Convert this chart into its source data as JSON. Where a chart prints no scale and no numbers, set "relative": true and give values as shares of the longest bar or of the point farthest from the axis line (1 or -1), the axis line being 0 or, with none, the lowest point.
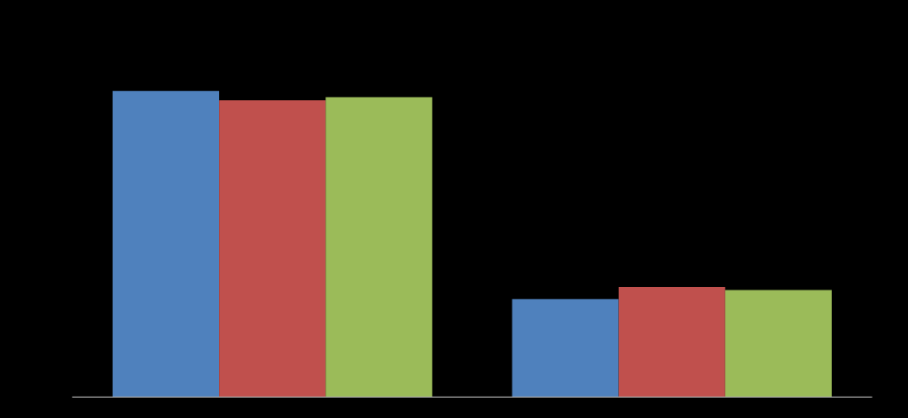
{
  "chart_data": {
    "type": "bar",
    "relative": true,
    "categories": [
      null,
      null
    ],
    "series": [
      {
        "color": "#4f81bd",
        "values": [
          1,
          0.32
        ]
      },
      {
        "color": "#c0504d",
        "values": [
          0.97,
          0.36
        ]
      },
      {
        "color": "#9bbb59",
        "values": [
          0.98,
          0.35
        ]
      }
    ]
  }
}
